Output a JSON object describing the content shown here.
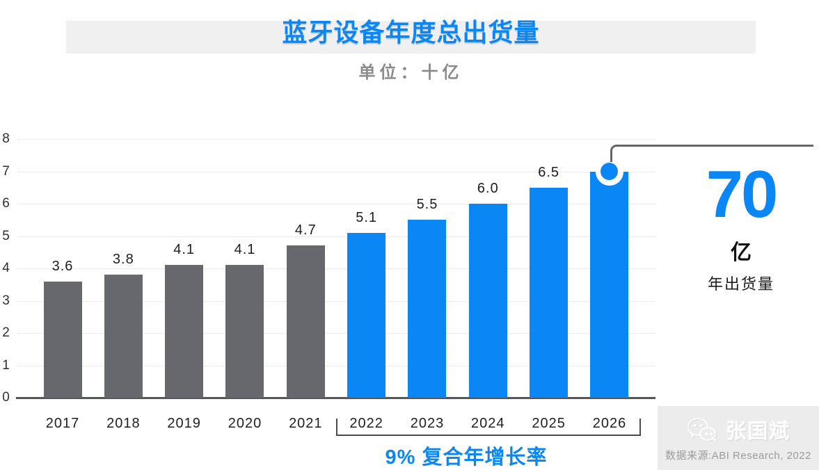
{
  "title": "蓝牙设备年度总出货量",
  "subtitle": "单位：十亿",
  "chart_data": {
    "type": "bar",
    "title": "蓝牙设备年度总出货量",
    "unit": "十亿",
    "categories": [
      "2017",
      "2018",
      "2019",
      "2020",
      "2021",
      "2022",
      "2023",
      "2024",
      "2025",
      "2026"
    ],
    "values": [
      3.6,
      3.8,
      4.1,
      4.1,
      4.7,
      5.1,
      5.5,
      6.0,
      6.5,
      7.0
    ],
    "bar_value_labels": [
      "3.6",
      "3.8",
      "4.1",
      "4.1",
      "4.7",
      "5.1",
      "5.5",
      "6.0",
      "6.5",
      ""
    ],
    "ylim": [
      0,
      8
    ],
    "yticks": [
      0,
      1,
      2,
      3,
      4,
      5,
      6,
      7,
      8
    ],
    "grid": true,
    "legend": false,
    "forecast_start_index": 5,
    "series_colors": {
      "historical_2017_2021": "#66686d",
      "forecast_2022_2026": "#0b86f5"
    },
    "highlight_marker": {
      "category": "2026",
      "value": 7.0
    }
  },
  "callout": {
    "value": "70",
    "unit": "亿",
    "label": "年出货量"
  },
  "cagr": {
    "text": "9% 复合年增长率",
    "span_start": "2022",
    "span_end": "2026"
  },
  "watermark": {
    "icon": "wechat-icon",
    "name": "张国斌",
    "source": "数据来源:ABI Research, 2022"
  },
  "colors": {
    "accent_blue": "#0b86f5",
    "bar_gray": "#66686d",
    "banner_gray": "#f0f0f0",
    "connector_gray": "#666666",
    "bracket_gray": "#4a4a4a",
    "watermark_bg": "#ececec",
    "source_text_gray": "#9b9b9b"
  }
}
